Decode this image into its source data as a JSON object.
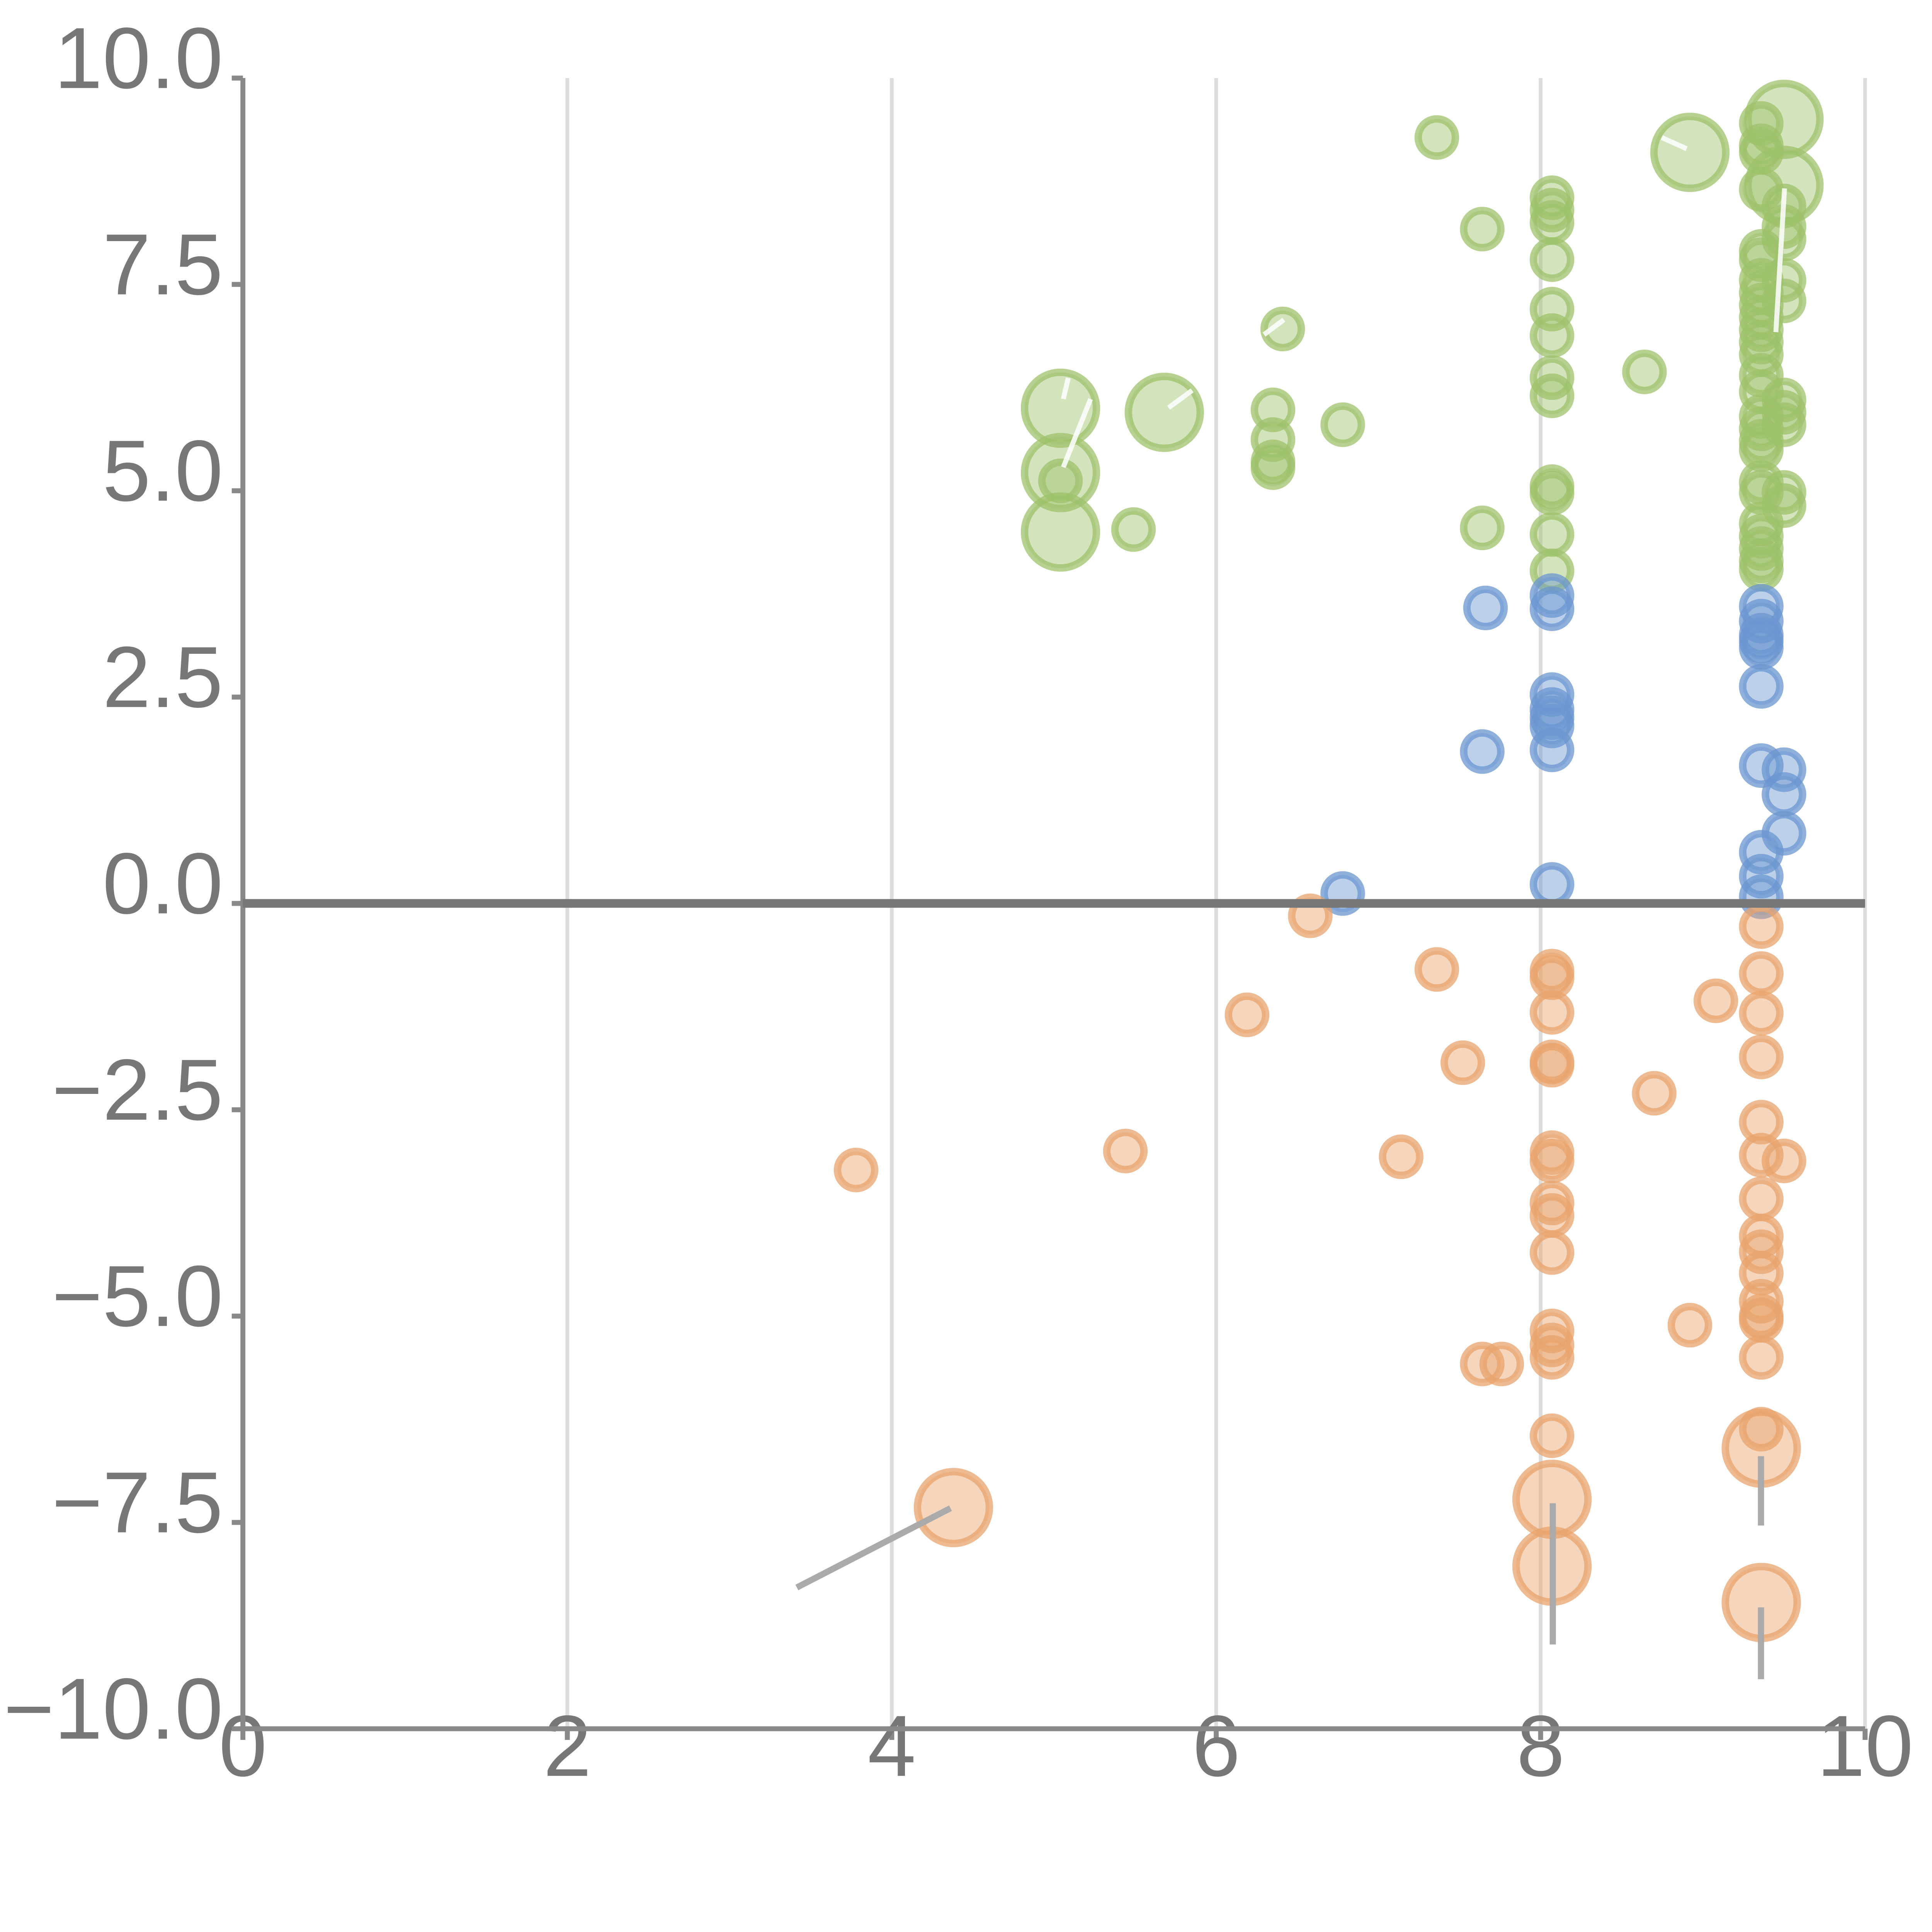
{
  "chart_data": {
    "type": "scatter",
    "xlim": [
      0,
      10
    ],
    "ylim": [
      -10,
      10
    ],
    "x_ticks": [
      "0",
      "2",
      "4",
      "6",
      "8",
      "10"
    ],
    "y_ticks": [
      "10.0",
      "7.5",
      "5.0",
      "2.5",
      "0.0",
      "−2.5",
      "−5.0",
      "−7.5",
      "−10.0"
    ],
    "x_tick_values": [
      0,
      2,
      4,
      6,
      8,
      10
    ],
    "y_tick_values": [
      10,
      7.5,
      5,
      2.5,
      0,
      -2.5,
      -5,
      -7.5,
      -10
    ],
    "grid": "vertical",
    "zero_line": true,
    "colors": {
      "green": "#9dc26b",
      "blue": "#6b96d0",
      "orange": "#e8a36c",
      "grid": "#dddddd",
      "axis": "#888888"
    },
    "series": [
      {
        "color": "green",
        "points": [
          [
            7.36,
            9.28,
            1
          ],
          [
            8.92,
            9.1,
            2
          ],
          [
            9.5,
            9.5,
            2
          ],
          [
            9.36,
            9.45,
            1
          ],
          [
            9.36,
            9.18,
            1
          ],
          [
            9.36,
            9.1,
            1
          ],
          [
            9.36,
            8.65,
            1
          ],
          [
            9.5,
            8.7,
            2
          ],
          [
            9.5,
            8.45,
            1
          ],
          [
            9.5,
            8.2,
            1
          ],
          [
            9.5,
            8.05,
            1
          ],
          [
            8.07,
            8.55,
            1
          ],
          [
            8.07,
            8.4,
            1
          ],
          [
            8.07,
            8.25,
            1
          ],
          [
            7.64,
            8.17,
            1
          ],
          [
            8.07,
            7.8,
            1
          ],
          [
            9.36,
            7.9,
            1
          ],
          [
            9.36,
            7.8,
            1
          ],
          [
            9.5,
            7.55,
            1
          ],
          [
            9.36,
            7.55,
            1
          ],
          [
            9.36,
            7.4,
            1
          ],
          [
            9.5,
            7.3,
            1
          ],
          [
            9.36,
            7.25,
            1
          ],
          [
            9.36,
            7.1,
            1
          ],
          [
            9.36,
            6.95,
            1
          ],
          [
            9.36,
            6.8,
            1
          ],
          [
            9.36,
            6.65,
            1
          ],
          [
            8.07,
            7.2,
            1
          ],
          [
            8.07,
            6.88,
            1
          ],
          [
            6.41,
            6.96,
            1
          ],
          [
            8.64,
            6.44,
            1
          ],
          [
            8.07,
            6.37,
            1
          ],
          [
            8.07,
            6.15,
            1
          ],
          [
            9.36,
            6.4,
            1
          ],
          [
            9.36,
            6.2,
            1
          ],
          [
            9.5,
            6.1,
            1
          ],
          [
            9.5,
            5.95,
            1
          ],
          [
            9.5,
            5.8,
            1
          ],
          [
            9.36,
            5.9,
            1
          ],
          [
            9.36,
            5.75,
            1
          ],
          [
            9.36,
            5.6,
            1
          ],
          [
            9.36,
            5.5,
            1
          ],
          [
            5.04,
            6.0,
            2
          ],
          [
            5.68,
            5.95,
            2
          ],
          [
            6.35,
            5.98,
            1
          ],
          [
            6.78,
            5.8,
            1
          ],
          [
            6.35,
            5.62,
            1
          ],
          [
            6.35,
            5.35,
            1
          ],
          [
            6.35,
            5.28,
            1
          ],
          [
            5.04,
            5.22,
            2
          ],
          [
            5.04,
            5.12,
            1
          ],
          [
            9.36,
            5.1,
            1
          ],
          [
            9.36,
            4.98,
            1
          ],
          [
            9.5,
            4.98,
            1
          ],
          [
            9.5,
            4.82,
            1
          ],
          [
            8.07,
            5.05,
            1
          ],
          [
            8.07,
            4.97,
            1
          ],
          [
            7.64,
            4.55,
            1
          ],
          [
            5.49,
            4.53,
            1
          ],
          [
            5.04,
            4.5,
            2
          ],
          [
            8.07,
            4.47,
            1
          ],
          [
            9.36,
            4.6,
            1
          ],
          [
            9.36,
            4.45,
            1
          ],
          [
            9.36,
            4.3,
            1
          ],
          [
            9.36,
            4.15,
            1
          ],
          [
            9.36,
            4.05,
            1
          ],
          [
            8.07,
            4.03,
            1
          ]
        ]
      },
      {
        "color": "blue",
        "points": [
          [
            7.66,
            3.58,
            1
          ],
          [
            8.07,
            3.73,
            1
          ],
          [
            8.07,
            3.57,
            1
          ],
          [
            9.36,
            3.6,
            1
          ],
          [
            9.36,
            3.42,
            1
          ],
          [
            9.36,
            3.25,
            1
          ],
          [
            9.36,
            3.18,
            1
          ],
          [
            9.36,
            3.1,
            1
          ],
          [
            8.07,
            2.53,
            1
          ],
          [
            8.07,
            2.35,
            1
          ],
          [
            8.07,
            2.25,
            1
          ],
          [
            8.07,
            2.15,
            1
          ],
          [
            9.36,
            2.63,
            1
          ],
          [
            7.64,
            1.84,
            1
          ],
          [
            8.07,
            1.86,
            1
          ],
          [
            9.36,
            1.67,
            1
          ],
          [
            9.5,
            1.62,
            1
          ],
          [
            9.5,
            1.32,
            1
          ],
          [
            9.5,
            0.85,
            1
          ],
          [
            9.36,
            0.62,
            1
          ],
          [
            9.36,
            0.33,
            1
          ],
          [
            9.36,
            0.08,
            1
          ],
          [
            8.07,
            0.23,
            1
          ],
          [
            6.78,
            0.12,
            1
          ]
        ]
      },
      {
        "color": "orange",
        "points": [
          [
            6.58,
            -0.15,
            1
          ],
          [
            9.36,
            -0.28,
            1
          ],
          [
            7.36,
            -0.8,
            1
          ],
          [
            8.07,
            -0.82,
            1
          ],
          [
            8.07,
            -0.9,
            1
          ],
          [
            9.36,
            -0.85,
            1
          ],
          [
            9.08,
            -1.18,
            1
          ],
          [
            6.19,
            -1.35,
            1
          ],
          [
            8.07,
            -1.32,
            1
          ],
          [
            9.36,
            -1.33,
            1
          ],
          [
            9.36,
            -1.86,
            1
          ],
          [
            7.52,
            -1.93,
            1
          ],
          [
            8.07,
            -1.92,
            1
          ],
          [
            8.07,
            -1.96,
            1
          ],
          [
            8.7,
            -2.3,
            1
          ],
          [
            9.36,
            -2.65,
            1
          ],
          [
            5.44,
            -3.0,
            1
          ],
          [
            7.14,
            -3.07,
            1
          ],
          [
            8.07,
            -3.02,
            1
          ],
          [
            8.07,
            -3.12,
            1
          ],
          [
            9.36,
            -3.05,
            1
          ],
          [
            9.5,
            -3.12,
            1
          ],
          [
            3.78,
            -3.23,
            1
          ],
          [
            9.36,
            -3.58,
            1
          ],
          [
            8.07,
            -3.63,
            1
          ],
          [
            8.07,
            -3.78,
            1
          ],
          [
            9.36,
            -4.03,
            1
          ],
          [
            9.36,
            -4.22,
            1
          ],
          [
            8.07,
            -4.23,
            1
          ],
          [
            9.36,
            -4.48,
            1
          ],
          [
            9.36,
            -4.82,
            1
          ],
          [
            9.36,
            -5.0,
            1
          ],
          [
            9.36,
            -5.05,
            1
          ],
          [
            8.92,
            -5.11,
            1
          ],
          [
            8.07,
            -5.18,
            1
          ],
          [
            8.07,
            -5.35,
            1
          ],
          [
            8.07,
            -5.5,
            1
          ],
          [
            9.36,
            -5.5,
            1
          ],
          [
            7.64,
            -5.58,
            1
          ],
          [
            7.76,
            -5.58,
            1
          ],
          [
            9.36,
            -6.37,
            1
          ],
          [
            8.07,
            -6.45,
            1
          ],
          [
            9.36,
            -6.6,
            2
          ],
          [
            8.07,
            -7.22,
            2
          ],
          [
            4.38,
            -7.32,
            2
          ],
          [
            8.07,
            -8.03,
            2
          ],
          [
            9.36,
            -8.47,
            2
          ]
        ]
      }
    ]
  }
}
